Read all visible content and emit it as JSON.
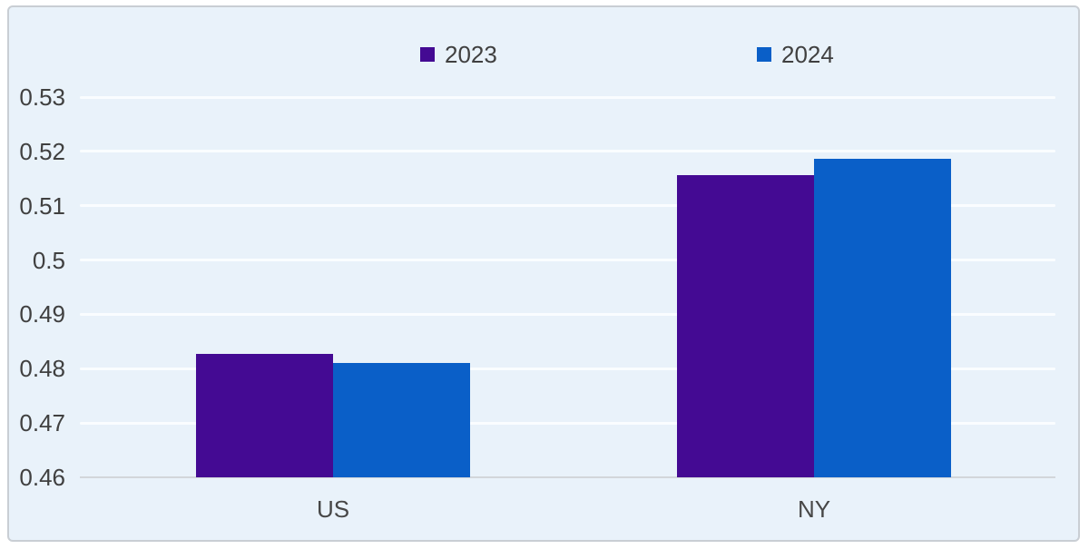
{
  "chart_data": {
    "type": "bar",
    "categories": [
      "US",
      "NY"
    ],
    "series": [
      {
        "name": "2023",
        "color": "#440a93",
        "values": [
          0.4828,
          0.5157
        ]
      },
      {
        "name": "2024",
        "color": "#0a5fc8",
        "values": [
          0.481,
          0.5186
        ]
      }
    ],
    "title": "",
    "xlabel": "",
    "ylabel": "",
    "ylim": [
      0.46,
      0.53
    ],
    "yticks": [
      "0.46",
      "0.47",
      "0.48",
      "0.49",
      "0.5",
      "0.51",
      "0.52",
      "0.53"
    ],
    "grid": true,
    "legend_position": "top"
  },
  "colors": {
    "page_background": "#ffffff",
    "plot_background": "#e9f2fa",
    "frame_border": "#c9ced4",
    "gridline": "#fafdff",
    "axis_line": "#d2d6da",
    "tick_label": "#404040",
    "category_label": "#474747",
    "series_2023": "#440a93",
    "series_2024": "#0a5fc8"
  }
}
